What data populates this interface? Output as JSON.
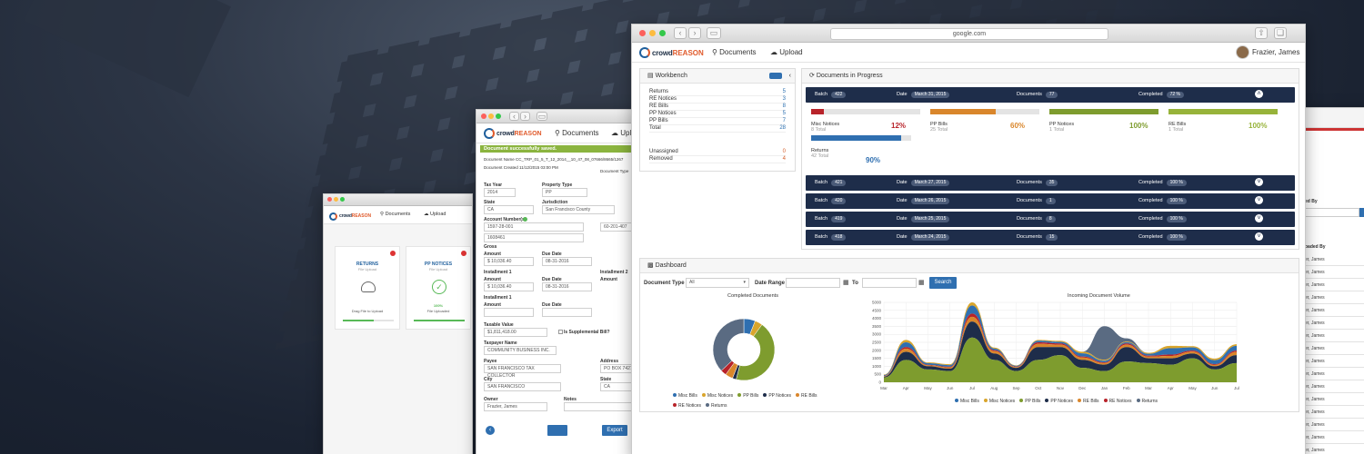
{
  "colors": {
    "navy": "#1e2d4a",
    "blue": "#2f6fb0",
    "red": "#b8232a",
    "orange": "#d9862b",
    "green": "#7e9c2e",
    "olive": "#97b33a",
    "success": "#8bb43f"
  },
  "main": {
    "url": "google.com",
    "nav": {
      "documents": "Documents",
      "upload": "Upload",
      "user": "Frazier, James"
    },
    "workbench": {
      "title": "Workbench",
      "badge": "",
      "rows": [
        {
          "label": "Returns",
          "value": "5"
        },
        {
          "label": "RE Notices",
          "value": "3"
        },
        {
          "label": "RE Bills",
          "value": "8"
        },
        {
          "label": "PP Notices",
          "value": "5"
        },
        {
          "label": "PP Bills",
          "value": "7"
        },
        {
          "label": "Total",
          "value": "28"
        }
      ],
      "rows2": [
        {
          "label": "Unassigned",
          "value": "0"
        },
        {
          "label": "Removed",
          "value": "4"
        }
      ]
    },
    "dip": {
      "title": "Documents in Progress",
      "labels": {
        "batch": "Batch",
        "date": "Date",
        "documents": "Documents",
        "completed": "Completed"
      },
      "batches": [
        {
          "batch": "422",
          "date": "March 31, 2015",
          "documents": "77",
          "completed": "72 %"
        },
        {
          "batch": "421",
          "date": "March 27, 2015",
          "documents": "35",
          "completed": "100 %"
        },
        {
          "batch": "420",
          "date": "March 26, 2015",
          "documents": "1",
          "completed": "100 %"
        },
        {
          "batch": "419",
          "date": "March 25, 2015",
          "documents": "8",
          "completed": "100 %"
        },
        {
          "batch": "418",
          "date": "March 24, 2015",
          "documents": "15",
          "completed": "100 %"
        }
      ],
      "progress": [
        {
          "name": "Misc Notices",
          "sub": "8 Total",
          "pct": "12%",
          "value": 0.12,
          "color": "#b8232a"
        },
        {
          "name": "PP Bills",
          "sub": "25 Total",
          "pct": "60%",
          "value": 0.6,
          "color": "#d9862b"
        },
        {
          "name": "PP Notices",
          "sub": "1 Total",
          "pct": "100%",
          "value": 1.0,
          "color": "#7e9c2e"
        },
        {
          "name": "RE Bills",
          "sub": "1 Total",
          "pct": "100%",
          "value": 1.0,
          "color": "#97b33a"
        },
        {
          "name": "Returns",
          "sub": "42 Total",
          "pct": "90%",
          "value": 0.9,
          "color": "#2f6fb0"
        }
      ]
    },
    "dashboard": {
      "title": "Dashboard",
      "doctype_label": "Document Type",
      "doctype_value": "All",
      "range_label": "Date Range",
      "to_label": "To",
      "search": "Search",
      "donut_title": "Completed Documents",
      "area_title": "Incoming Document Volume"
    }
  },
  "chart_data": [
    {
      "type": "pie",
      "title": "Completed Documents",
      "categories": [
        "Misc Bills",
        "Misc Notices",
        "PP Bills",
        "PP Notices",
        "RE Bills",
        "RE Notices",
        "Returns"
      ],
      "values": [
        6,
        4,
        44,
        2,
        4,
        3,
        37
      ],
      "colors": [
        "#2f6fb0",
        "#d9a52b",
        "#7e9c2e",
        "#1e2d4a",
        "#d9862b",
        "#b8232a",
        "#5a6b82"
      ]
    },
    {
      "type": "area",
      "title": "Incoming Document Volume",
      "categories": [
        "Mar",
        "Apr",
        "May",
        "Jun",
        "Jul",
        "Aug",
        "Sep",
        "Oct",
        "Nov",
        "Dec",
        "Jan",
        "Feb",
        "Mar",
        "Apr",
        "May",
        "Jun",
        "Jul"
      ],
      "ylim": [
        0,
        5000
      ],
      "yticks": [
        "0",
        "500",
        "1000",
        "1500",
        "2000",
        "2500",
        "3000",
        "3500",
        "4000",
        "4500",
        "5000"
      ],
      "series": [
        {
          "name": "Misc Bills",
          "values": [
            50,
            300,
            100,
            100,
            500,
            100,
            50,
            100,
            100,
            200,
            100,
            80,
            120,
            400,
            200,
            250,
            300
          ]
        },
        {
          "name": "Misc Notices",
          "values": [
            30,
            150,
            50,
            60,
            200,
            60,
            30,
            50,
            60,
            100,
            60,
            40,
            60,
            150,
            80,
            100,
            100
          ]
        },
        {
          "name": "PP Bills",
          "values": [
            300,
            1400,
            800,
            700,
            2800,
            1400,
            700,
            1400,
            1700,
            900,
            700,
            1300,
            1200,
            1100,
            1500,
            800,
            1200
          ]
        },
        {
          "name": "PP Notices",
          "values": [
            50,
            500,
            200,
            150,
            1000,
            400,
            200,
            800,
            500,
            500,
            400,
            900,
            300,
            400,
            300,
            200,
            500
          ]
        },
        {
          "name": "RE Bills",
          "values": [
            30,
            200,
            60,
            80,
            300,
            150,
            50,
            200,
            150,
            150,
            100,
            150,
            100,
            150,
            120,
            80,
            200
          ]
        },
        {
          "name": "RE Notices",
          "values": [
            20,
            100,
            30,
            40,
            200,
            60,
            30,
            100,
            80,
            60,
            50,
            80,
            60,
            80,
            60,
            50,
            80
          ]
        },
        {
          "name": "Returns",
          "values": [
            0,
            0,
            0,
            0,
            0,
            0,
            0,
            0,
            0,
            0,
            2100,
            200,
            0,
            0,
            0,
            0,
            0
          ]
        }
      ],
      "colors": [
        "#2f6fb0",
        "#d9a52b",
        "#7e9c2e",
        "#1e2d4a",
        "#d9862b",
        "#b8232a",
        "#5a6b82"
      ]
    }
  ],
  "mid": {
    "nav": {
      "documents": "Documents",
      "upload": "Upl"
    },
    "banner": "Document successfully saved.",
    "docname": "Document Name CC_TRP_01_5_T_12_2014__10_47_08_07666/8665/1267",
    "created": "Document Created 11/12/2015 03:00 PM",
    "doctype": "Document Type",
    "fields": [
      {
        "label": "Tax Year",
        "value": "2014"
      },
      {
        "label": "Property Type",
        "value": "PP"
      },
      {
        "label": "State",
        "value": "CA"
      },
      {
        "label": "Jurisdiction",
        "value": "San Francisco County"
      },
      {
        "label": "Account Number(s)",
        "value": "1597-28-001"
      },
      {
        "label": "",
        "value": "1608461"
      },
      {
        "label": "Gross",
        "value": ""
      },
      {
        "label": "Amount",
        "value": "$ 10,036.40"
      },
      {
        "label": "Due Date",
        "value": "08-31-2016"
      },
      {
        "label": "Installment 1",
        "value": ""
      },
      {
        "label": "Amount",
        "value": "$ 10,036.40"
      },
      {
        "label": "Due Date",
        "value": "08-31-2016"
      },
      {
        "label": "Installment 2",
        "value": ""
      },
      {
        "label": "Taxable Value",
        "value": "$1,811,418.00"
      },
      {
        "label": "Is Supplemental Bill?",
        "value": ""
      },
      {
        "label": "Taxpayer Name",
        "value": "COMMUNITY BUSINESS INC."
      },
      {
        "label": "Payee",
        "value": "SAN FRANCISCO TAX COLLECTOR"
      },
      {
        "label": "Address",
        "value": "PO BOX 7427"
      },
      {
        "label": "City",
        "value": "SAN FRANCISCO"
      },
      {
        "label": "State",
        "value": "CA"
      },
      {
        "label": "Owner",
        "value": "Frazier, James"
      },
      {
        "label": "Notes",
        "value": ""
      }
    ],
    "export": "Export",
    "extra_value": "60-201-407",
    "inst2": "Installment 2",
    "amount": "Amount"
  },
  "small": {
    "nav": {
      "documents": "Documents",
      "upload": "Upload"
    },
    "cards": [
      {
        "title": "RETURNS",
        "sub": "File Upload",
        "body": "Drag File to Upload",
        "progress": 0.6
      },
      {
        "title": "PP NOTICES",
        "sub": "File Upload",
        "body": "100%",
        "body2": "File Uploaded",
        "progress": 1.0
      }
    ]
  },
  "right": {
    "header1": "ed By",
    "header2": "oaded By",
    "rows": [
      "er, James",
      "er, James",
      "er, James",
      "er, James",
      "er, James",
      "er, James",
      "er, James",
      "er, James",
      "er, James",
      "er, James",
      "er, James",
      "er, James",
      "er, James",
      "er, James",
      "er, James",
      "er, James"
    ]
  }
}
